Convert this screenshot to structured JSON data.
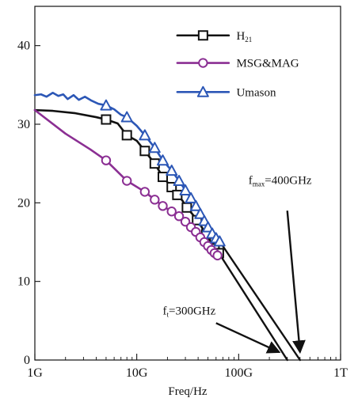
{
  "chart_data": {
    "type": "line",
    "xlabel": "Freq/Hz",
    "ylabel": "",
    "x_scale": "log",
    "xlim": [
      "1G",
      "1T"
    ],
    "ylim": [
      0,
      45
    ],
    "grid": false,
    "legend_position": "top-right",
    "x_ticks": [
      {
        "label": "1G",
        "value": 1000000000
      },
      {
        "label": "10G",
        "value": 10000000000
      },
      {
        "label": "100G",
        "value": 100000000000
      },
      {
        "label": "1T",
        "value": 1000000000000
      }
    ],
    "y_ticks": [
      0,
      10,
      20,
      30,
      40
    ],
    "series": [
      {
        "name": "H21",
        "legend_main": "H",
        "legend_sub": "21",
        "color": "#111111",
        "marker": "square",
        "points": [
          {
            "x": 1000000000,
            "y": 31.8
          },
          {
            "x": 1500000000,
            "y": 31.7
          },
          {
            "x": 2500000000,
            "y": 31.4
          },
          {
            "x": 4000000000,
            "y": 30.9
          },
          {
            "x": 5000000000,
            "y": 30.6
          },
          {
            "x": 6500000000,
            "y": 30.1
          },
          {
            "x": 8000000000,
            "y": 28.6
          },
          {
            "x": 10000000000,
            "y": 27.9
          },
          {
            "x": 12000000000,
            "y": 26.6
          },
          {
            "x": 15000000000,
            "y": 25.0
          },
          {
            "x": 18000000000,
            "y": 23.3
          },
          {
            "x": 22000000000,
            "y": 22.0
          },
          {
            "x": 25000000000,
            "y": 21.0
          },
          {
            "x": 28000000000,
            "y": 20.3
          },
          {
            "x": 31000000000,
            "y": 19.4
          },
          {
            "x": 35000000000,
            "y": 18.6
          },
          {
            "x": 39000000000,
            "y": 17.8
          },
          {
            "x": 43000000000,
            "y": 17.0
          },
          {
            "x": 48000000000,
            "y": 16.0
          },
          {
            "x": 53000000000,
            "y": 15.1
          },
          {
            "x": 58000000000,
            "y": 14.2
          },
          {
            "x": 64000000000,
            "y": 13.6
          }
        ],
        "marker_points": [
          {
            "x": 5000000000,
            "y": 30.6
          },
          {
            "x": 8000000000,
            "y": 28.6
          },
          {
            "x": 12000000000,
            "y": 26.6
          },
          {
            "x": 15000000000,
            "y": 25.0
          },
          {
            "x": 18000000000,
            "y": 23.3
          },
          {
            "x": 22000000000,
            "y": 22.0
          },
          {
            "x": 25000000000,
            "y": 21.0
          },
          {
            "x": 31000000000,
            "y": 19.4
          },
          {
            "x": 39000000000,
            "y": 17.8
          },
          {
            "x": 48000000000,
            "y": 16.0
          },
          {
            "x": 58000000000,
            "y": 14.2
          },
          {
            "x": 64000000000,
            "y": 13.6
          }
        ]
      },
      {
        "name": "MSG&MAG",
        "legend_main": "MSG&MAG",
        "legend_sub": "",
        "color": "#8b2f93",
        "marker": "circle",
        "points": [
          {
            "x": 1000000000,
            "y": 31.8
          },
          {
            "x": 2000000000,
            "y": 28.8
          },
          {
            "x": 3500000000,
            "y": 26.8
          },
          {
            "x": 5000000000,
            "y": 25.4
          },
          {
            "x": 8000000000,
            "y": 22.8
          },
          {
            "x": 12000000000,
            "y": 21.4
          },
          {
            "x": 15000000000,
            "y": 20.4
          },
          {
            "x": 18000000000,
            "y": 19.6
          },
          {
            "x": 22000000000,
            "y": 18.9
          },
          {
            "x": 26000000000,
            "y": 18.3
          },
          {
            "x": 30000000000,
            "y": 17.6
          },
          {
            "x": 34000000000,
            "y": 16.9
          },
          {
            "x": 38000000000,
            "y": 16.3
          },
          {
            "x": 42000000000,
            "y": 15.6
          },
          {
            "x": 46000000000,
            "y": 15.0
          },
          {
            "x": 50000000000,
            "y": 14.5
          },
          {
            "x": 54000000000,
            "y": 14.0
          },
          {
            "x": 58000000000,
            "y": 13.6
          },
          {
            "x": 62000000000,
            "y": 13.3
          }
        ],
        "marker_points": [
          {
            "x": 5000000000,
            "y": 25.4
          },
          {
            "x": 8000000000,
            "y": 22.8
          },
          {
            "x": 12000000000,
            "y": 21.4
          },
          {
            "x": 15000000000,
            "y": 20.4
          },
          {
            "x": 18000000000,
            "y": 19.6
          },
          {
            "x": 22000000000,
            "y": 18.9
          },
          {
            "x": 26000000000,
            "y": 18.3
          },
          {
            "x": 30000000000,
            "y": 17.6
          },
          {
            "x": 34000000000,
            "y": 16.9
          },
          {
            "x": 38000000000,
            "y": 16.3
          },
          {
            "x": 42000000000,
            "y": 15.6
          },
          {
            "x": 46000000000,
            "y": 15.0
          },
          {
            "x": 50000000000,
            "y": 14.5
          },
          {
            "x": 54000000000,
            "y": 14.0
          },
          {
            "x": 58000000000,
            "y": 13.6
          },
          {
            "x": 62000000000,
            "y": 13.3
          }
        ]
      },
      {
        "name": "Umason",
        "legend_main": "Umason",
        "legend_sub": "",
        "color": "#2c57b6",
        "marker": "triangle",
        "points": [
          {
            "x": 1000000000,
            "y": 33.7
          },
          {
            "x": 1150000000,
            "y": 33.8
          },
          {
            "x": 1300000000,
            "y": 33.5
          },
          {
            "x": 1500000000,
            "y": 34.0
          },
          {
            "x": 1700000000,
            "y": 33.6
          },
          {
            "x": 1900000000,
            "y": 33.8
          },
          {
            "x": 2100000000,
            "y": 33.2
          },
          {
            "x": 2400000000,
            "y": 33.7
          },
          {
            "x": 2700000000,
            "y": 33.1
          },
          {
            "x": 3100000000,
            "y": 33.5
          },
          {
            "x": 3600000000,
            "y": 33.0
          },
          {
            "x": 4200000000,
            "y": 32.6
          },
          {
            "x": 5000000000,
            "y": 32.4
          },
          {
            "x": 6000000000,
            "y": 31.9
          },
          {
            "x": 7000000000,
            "y": 31.2
          },
          {
            "x": 8000000000,
            "y": 30.9
          },
          {
            "x": 10000000000,
            "y": 29.8
          },
          {
            "x": 12000000000,
            "y": 28.6
          },
          {
            "x": 15000000000,
            "y": 27.0
          },
          {
            "x": 18000000000,
            "y": 25.4
          },
          {
            "x": 22000000000,
            "y": 24.1
          },
          {
            "x": 26000000000,
            "y": 22.8
          },
          {
            "x": 30000000000,
            "y": 21.6
          },
          {
            "x": 34000000000,
            "y": 20.6
          },
          {
            "x": 38000000000,
            "y": 19.6
          },
          {
            "x": 42000000000,
            "y": 18.6
          },
          {
            "x": 46000000000,
            "y": 17.7
          },
          {
            "x": 50000000000,
            "y": 16.9
          },
          {
            "x": 55000000000,
            "y": 16.1
          },
          {
            "x": 60000000000,
            "y": 15.5
          },
          {
            "x": 65000000000,
            "y": 15.1
          }
        ],
        "marker_points": [
          {
            "x": 5000000000,
            "y": 32.4
          },
          {
            "x": 8000000000,
            "y": 30.9
          },
          {
            "x": 12000000000,
            "y": 28.6
          },
          {
            "x": 15000000000,
            "y": 27.0
          },
          {
            "x": 18000000000,
            "y": 25.4
          },
          {
            "x": 22000000000,
            "y": 24.1
          },
          {
            "x": 26000000000,
            "y": 22.8
          },
          {
            "x": 30000000000,
            "y": 21.6
          },
          {
            "x": 34000000000,
            "y": 20.6
          },
          {
            "x": 38000000000,
            "y": 19.6
          },
          {
            "x": 42000000000,
            "y": 18.6
          },
          {
            "x": 46000000000,
            "y": 17.7
          },
          {
            "x": 50000000000,
            "y": 16.9
          },
          {
            "x": 55000000000,
            "y": 16.1
          },
          {
            "x": 60000000000,
            "y": 15.5
          },
          {
            "x": 65000000000,
            "y": 15.1
          }
        ]
      }
    ],
    "extrapolations": [
      {
        "name": "H21 extrapolation",
        "color": "#111111",
        "points": [
          {
            "x": 64000000000,
            "y": 13.6
          },
          {
            "x": 300000000000,
            "y": 0
          }
        ]
      },
      {
        "name": "Umason extrapolation",
        "color": "#111111",
        "points": [
          {
            "x": 65000000000,
            "y": 15.1
          },
          {
            "x": 400000000000,
            "y": 0
          }
        ]
      }
    ],
    "annotations": [
      {
        "id": "fmax",
        "prefix": "f",
        "subscript": "max",
        "suffix": "=400GHz",
        "arrow_from": {
          "x": 300000000000,
          "y": 19.0
        },
        "arrow_to": {
          "x": 400000000000,
          "y": 1.0
        }
      },
      {
        "id": "ft",
        "prefix": "f",
        "subscript": "t",
        "suffix": "=300GHz",
        "arrow_from": {
          "x": 60000000000,
          "y": 4.7
        },
        "arrow_to": {
          "x": 250000000000,
          "y": 1.0
        }
      }
    ]
  }
}
